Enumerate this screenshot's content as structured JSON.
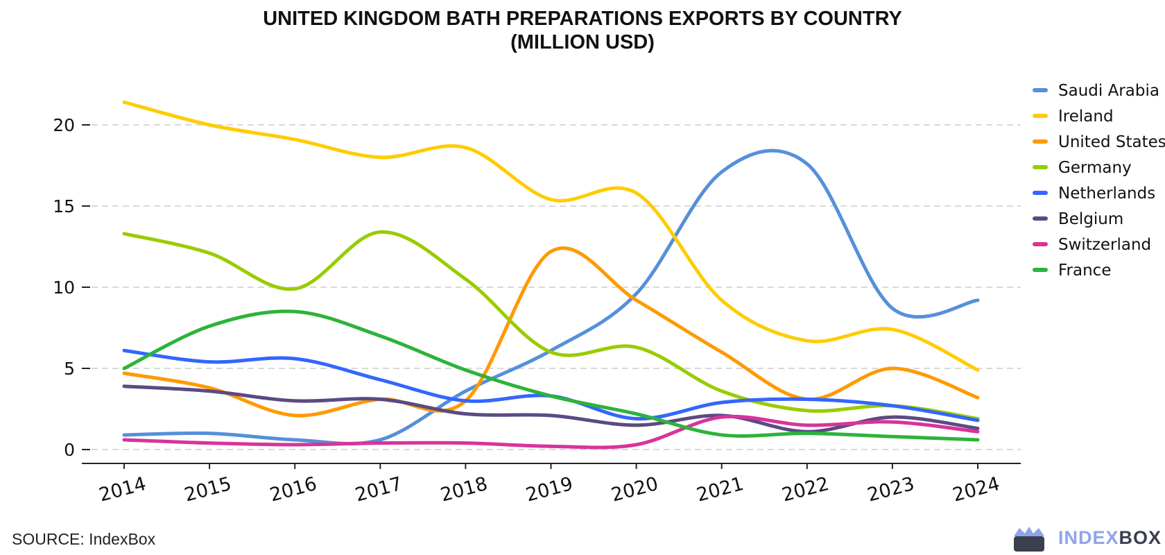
{
  "title_line1": "UNITED KINGDOM BATH PREPARATIONS EXPORTS BY COUNTRY",
  "title_line2": "(MILLION USD)",
  "source": "SOURCE: IndexBox",
  "brand": {
    "part1": "INDEX",
    "part2": "BOX",
    "logo_icon": "indexbox-crown-logo"
  },
  "chart_data": {
    "type": "line",
    "x": [
      2014,
      2015,
      2016,
      2017,
      2018,
      2019,
      2020,
      2021,
      2022,
      2023,
      2024
    ],
    "ylim": [
      0,
      22
    ],
    "yticks": [
      0,
      5,
      10,
      15,
      20
    ],
    "grid": "horizontal-dashed",
    "legend_position": "right",
    "series": [
      {
        "name": "Saudi Arabia",
        "color": "#5590d9",
        "values": [
          0.9,
          1.0,
          0.6,
          0.6,
          3.6,
          6.1,
          9.6,
          17.1,
          17.6,
          8.7,
          9.2
        ]
      },
      {
        "name": "Ireland",
        "color": "#ffcc00",
        "values": [
          21.4,
          20.0,
          19.1,
          18.0,
          18.6,
          15.4,
          15.8,
          9.2,
          6.7,
          7.4,
          4.9
        ]
      },
      {
        "name": "United States",
        "color": "#ff9a00",
        "values": [
          4.7,
          3.8,
          2.1,
          3.1,
          3.0,
          12.2,
          9.2,
          6.0,
          3.1,
          5.0,
          3.2
        ]
      },
      {
        "name": "Germany",
        "color": "#99cc00",
        "values": [
          13.3,
          12.1,
          9.9,
          13.4,
          10.5,
          6.0,
          6.3,
          3.6,
          2.4,
          2.7,
          1.9
        ]
      },
      {
        "name": "Netherlands",
        "color": "#3366ff",
        "values": [
          6.1,
          5.4,
          5.6,
          4.3,
          3.0,
          3.3,
          1.9,
          2.9,
          3.1,
          2.7,
          1.8
        ]
      },
      {
        "name": "Belgium",
        "color": "#5b4a82",
        "values": [
          3.9,
          3.6,
          3.0,
          3.1,
          2.2,
          2.1,
          1.5,
          2.1,
          1.1,
          2.0,
          1.3
        ]
      },
      {
        "name": "Switzerland",
        "color": "#d93399",
        "values": [
          0.6,
          0.4,
          0.3,
          0.4,
          0.4,
          0.2,
          0.3,
          2.0,
          1.5,
          1.7,
          1.1
        ]
      },
      {
        "name": "France",
        "color": "#2db33a",
        "values": [
          5.0,
          7.6,
          8.5,
          7.0,
          4.9,
          3.3,
          2.2,
          0.9,
          1.0,
          0.8,
          0.6
        ]
      }
    ]
  }
}
